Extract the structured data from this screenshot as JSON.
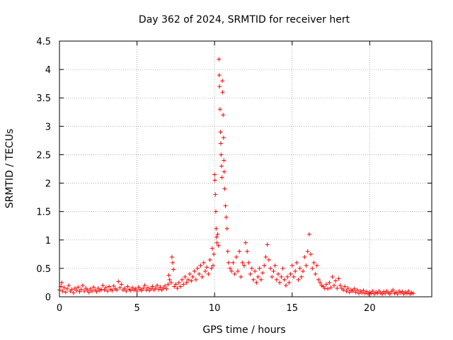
{
  "chart_data": {
    "type": "scatter",
    "title": "Day 362 of 2024, SRMTID for receiver hert",
    "xlabel": "GPS time / hours",
    "ylabel": "SRMTID / TECUs",
    "xlim": [
      0,
      24
    ],
    "ylim": [
      0,
      4.5
    ],
    "x_ticks": [
      0,
      5,
      10,
      15,
      20
    ],
    "x_tick_labels": [
      "0",
      "5",
      "10",
      "15",
      "20"
    ],
    "y_ticks": [
      0,
      0.5,
      1,
      1.5,
      2,
      2.5,
      3,
      3.5,
      4,
      4.5
    ],
    "y_tick_labels": [
      "0",
      "0.5",
      "1",
      "1.5",
      "2",
      "2.5",
      "3",
      "3.5",
      "4",
      "4.5"
    ],
    "grid": true,
    "marker": "+",
    "color": "#ff0000",
    "series": [
      {
        "name": "SRMTID",
        "points": [
          [
            0.0,
            0.12
          ],
          [
            0.1,
            0.18
          ],
          [
            0.15,
            0.25
          ],
          [
            0.2,
            0.1
          ],
          [
            0.3,
            0.16
          ],
          [
            0.4,
            0.08
          ],
          [
            0.5,
            0.14
          ],
          [
            0.6,
            0.2
          ],
          [
            0.7,
            0.1
          ],
          [
            0.8,
            0.13
          ],
          [
            0.9,
            0.07
          ],
          [
            1.0,
            0.15
          ],
          [
            1.1,
            0.11
          ],
          [
            1.2,
            0.17
          ],
          [
            1.3,
            0.09
          ],
          [
            1.4,
            0.13
          ],
          [
            1.5,
            0.2
          ],
          [
            1.6,
            0.1
          ],
          [
            1.7,
            0.15
          ],
          [
            1.8,
            0.12
          ],
          [
            1.9,
            0.08
          ],
          [
            2.0,
            0.14
          ],
          [
            2.1,
            0.1
          ],
          [
            2.2,
            0.17
          ],
          [
            2.3,
            0.12
          ],
          [
            2.4,
            0.09
          ],
          [
            2.5,
            0.15
          ],
          [
            2.6,
            0.11
          ],
          [
            2.7,
            0.13
          ],
          [
            2.8,
            0.2
          ],
          [
            2.9,
            0.12
          ],
          [
            3.0,
            0.16
          ],
          [
            3.1,
            0.1
          ],
          [
            3.2,
            0.18
          ],
          [
            3.3,
            0.13
          ],
          [
            3.4,
            0.11
          ],
          [
            3.5,
            0.19
          ],
          [
            3.6,
            0.14
          ],
          [
            3.7,
            0.12
          ],
          [
            3.8,
            0.27
          ],
          [
            3.9,
            0.16
          ],
          [
            4.0,
            0.22
          ],
          [
            4.1,
            0.12
          ],
          [
            4.2,
            0.15
          ],
          [
            4.3,
            0.1
          ],
          [
            4.4,
            0.18
          ],
          [
            4.5,
            0.13
          ],
          [
            4.6,
            0.11
          ],
          [
            4.7,
            0.16
          ],
          [
            4.8,
            0.12
          ],
          [
            4.9,
            0.14
          ],
          [
            5.0,
            0.1
          ],
          [
            5.1,
            0.17
          ],
          [
            5.2,
            0.13
          ],
          [
            5.3,
            0.11
          ],
          [
            5.4,
            0.15
          ],
          [
            5.5,
            0.2
          ],
          [
            5.6,
            0.12
          ],
          [
            5.7,
            0.16
          ],
          [
            5.8,
            0.11
          ],
          [
            5.9,
            0.14
          ],
          [
            6.0,
            0.18
          ],
          [
            6.1,
            0.12
          ],
          [
            6.2,
            0.15
          ],
          [
            6.3,
            0.2
          ],
          [
            6.4,
            0.13
          ],
          [
            6.5,
            0.17
          ],
          [
            6.6,
            0.12
          ],
          [
            6.7,
            0.15
          ],
          [
            6.8,
            0.19
          ],
          [
            6.9,
            0.14
          ],
          [
            7.0,
            0.22
          ],
          [
            7.05,
            0.38
          ],
          [
            7.1,
            0.3
          ],
          [
            7.2,
            0.25
          ],
          [
            7.25,
            0.7
          ],
          [
            7.3,
            0.6
          ],
          [
            7.35,
            0.48
          ],
          [
            7.4,
            0.18
          ],
          [
            7.5,
            0.22
          ],
          [
            7.6,
            0.15
          ],
          [
            7.7,
            0.25
          ],
          [
            7.8,
            0.18
          ],
          [
            7.9,
            0.3
          ],
          [
            8.0,
            0.22
          ],
          [
            8.1,
            0.35
          ],
          [
            8.2,
            0.25
          ],
          [
            8.3,
            0.3
          ],
          [
            8.4,
            0.4
          ],
          [
            8.5,
            0.28
          ],
          [
            8.6,
            0.35
          ],
          [
            8.7,
            0.45
          ],
          [
            8.8,
            0.3
          ],
          [
            8.9,
            0.5
          ],
          [
            9.0,
            0.4
          ],
          [
            9.1,
            0.55
          ],
          [
            9.2,
            0.35
          ],
          [
            9.3,
            0.6
          ],
          [
            9.4,
            0.45
          ],
          [
            9.5,
            0.52
          ],
          [
            9.6,
            0.4
          ],
          [
            9.7,
            0.65
          ],
          [
            9.8,
            0.5
          ],
          [
            9.85,
            0.85
          ],
          [
            9.9,
            0.55
          ],
          [
            9.95,
            0.75
          ],
          [
            10.0,
            2.15
          ],
          [
            10.02,
            2.05
          ],
          [
            10.05,
            1.8
          ],
          [
            10.08,
            1.5
          ],
          [
            10.1,
            1.2
          ],
          [
            10.12,
            1.05
          ],
          [
            10.15,
            0.95
          ],
          [
            10.2,
            1.1
          ],
          [
            10.25,
            0.9
          ],
          [
            10.28,
            4.18
          ],
          [
            10.3,
            3.9
          ],
          [
            10.32,
            3.7
          ],
          [
            10.35,
            3.3
          ],
          [
            10.38,
            2.9
          ],
          [
            10.4,
            2.7
          ],
          [
            10.42,
            2.5
          ],
          [
            10.45,
            2.3
          ],
          [
            10.48,
            2.1
          ],
          [
            10.5,
            3.8
          ],
          [
            10.52,
            3.6
          ],
          [
            10.55,
            3.2
          ],
          [
            10.58,
            2.8
          ],
          [
            10.6,
            2.4
          ],
          [
            10.62,
            2.2
          ],
          [
            10.65,
            1.9
          ],
          [
            10.7,
            1.6
          ],
          [
            10.75,
            1.4
          ],
          [
            10.8,
            1.2
          ],
          [
            10.85,
            0.8
          ],
          [
            10.9,
            0.6
          ],
          [
            11.0,
            0.5
          ],
          [
            11.1,
            0.45
          ],
          [
            11.2,
            0.6
          ],
          [
            11.3,
            0.4
          ],
          [
            11.4,
            0.7
          ],
          [
            11.5,
            0.45
          ],
          [
            11.6,
            0.8
          ],
          [
            11.7,
            0.35
          ],
          [
            11.8,
            0.6
          ],
          [
            11.9,
            0.55
          ],
          [
            12.0,
            0.95
          ],
          [
            12.1,
            0.8
          ],
          [
            12.2,
            0.6
          ],
          [
            12.3,
            0.4
          ],
          [
            12.4,
            0.5
          ],
          [
            12.5,
            0.3
          ],
          [
            12.6,
            0.45
          ],
          [
            12.7,
            0.25
          ],
          [
            12.8,
            0.35
          ],
          [
            12.9,
            0.5
          ],
          [
            13.0,
            0.3
          ],
          [
            13.1,
            0.42
          ],
          [
            13.2,
            0.55
          ],
          [
            13.3,
            0.7
          ],
          [
            13.4,
            0.92
          ],
          [
            13.5,
            0.65
          ],
          [
            13.6,
            0.5
          ],
          [
            13.7,
            0.35
          ],
          [
            13.8,
            0.45
          ],
          [
            13.9,
            0.55
          ],
          [
            14.0,
            0.3
          ],
          [
            14.1,
            0.4
          ],
          [
            14.2,
            0.25
          ],
          [
            14.3,
            0.35
          ],
          [
            14.4,
            0.5
          ],
          [
            14.5,
            0.3
          ],
          [
            14.6,
            0.2
          ],
          [
            14.7,
            0.35
          ],
          [
            14.8,
            0.25
          ],
          [
            14.9,
            0.4
          ],
          [
            15.0,
            0.55
          ],
          [
            15.1,
            0.35
          ],
          [
            15.2,
            0.45
          ],
          [
            15.3,
            0.6
          ],
          [
            15.4,
            0.3
          ],
          [
            15.5,
            0.5
          ],
          [
            15.6,
            0.35
          ],
          [
            15.7,
            0.45
          ],
          [
            15.8,
            0.7
          ],
          [
            15.9,
            0.55
          ],
          [
            16.0,
            0.8
          ],
          [
            16.1,
            1.1
          ],
          [
            16.2,
            0.75
          ],
          [
            16.3,
            0.5
          ],
          [
            16.4,
            0.6
          ],
          [
            16.5,
            0.4
          ],
          [
            16.6,
            0.55
          ],
          [
            16.7,
            0.3
          ],
          [
            16.8,
            0.25
          ],
          [
            16.9,
            0.2
          ],
          [
            17.0,
            0.18
          ],
          [
            17.1,
            0.15
          ],
          [
            17.2,
            0.22
          ],
          [
            17.3,
            0.14
          ],
          [
            17.4,
            0.25
          ],
          [
            17.5,
            0.16
          ],
          [
            17.6,
            0.35
          ],
          [
            17.7,
            0.2
          ],
          [
            17.8,
            0.28
          ],
          [
            17.9,
            0.15
          ],
          [
            18.0,
            0.32
          ],
          [
            18.1,
            0.2
          ],
          [
            18.2,
            0.15
          ],
          [
            18.3,
            0.12
          ],
          [
            18.4,
            0.18
          ],
          [
            18.5,
            0.1
          ],
          [
            18.6,
            0.15
          ],
          [
            18.7,
            0.08
          ],
          [
            18.8,
            0.12
          ],
          [
            18.9,
            0.1
          ],
          [
            19.0,
            0.14
          ],
          [
            19.1,
            0.08
          ],
          [
            19.2,
            0.12
          ],
          [
            19.3,
            0.06
          ],
          [
            19.4,
            0.1
          ],
          [
            19.5,
            0.07
          ],
          [
            19.6,
            0.11
          ],
          [
            19.7,
            0.06
          ],
          [
            19.8,
            0.09
          ],
          [
            19.9,
            0.05
          ],
          [
            20.0,
            0.08
          ],
          [
            20.1,
            0.06
          ],
          [
            20.2,
            0.1
          ],
          [
            20.3,
            0.05
          ],
          [
            20.4,
            0.08
          ],
          [
            20.5,
            0.06
          ],
          [
            20.6,
            0.1
          ],
          [
            20.7,
            0.07
          ],
          [
            20.8,
            0.05
          ],
          [
            20.9,
            0.09
          ],
          [
            21.0,
            0.06
          ],
          [
            21.1,
            0.1
          ],
          [
            21.2,
            0.07
          ],
          [
            21.3,
            0.05
          ],
          [
            21.4,
            0.09
          ],
          [
            21.5,
            0.12
          ],
          [
            21.6,
            0.06
          ],
          [
            21.7,
            0.08
          ],
          [
            21.8,
            0.05
          ],
          [
            21.9,
            0.1
          ],
          [
            22.0,
            0.07
          ],
          [
            22.1,
            0.09
          ],
          [
            22.2,
            0.05
          ],
          [
            22.3,
            0.08
          ],
          [
            22.4,
            0.06
          ],
          [
            22.5,
            0.1
          ],
          [
            22.6,
            0.05
          ],
          [
            22.7,
            0.07
          ],
          [
            22.8,
            0.06
          ]
        ]
      }
    ]
  }
}
